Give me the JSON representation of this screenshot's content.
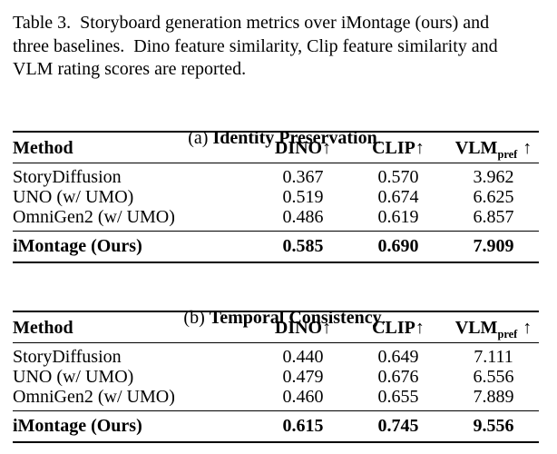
{
  "caption": {
    "lines": [
      "Table 3.  Storyboard generation metrics over iMontage (ours) and",
      "three baselines.  Dino feature similarity, Clip feature similarity and",
      "VLM rating scores are reported."
    ]
  },
  "colors": {
    "text": "#000000",
    "background": "#ffffff",
    "rule": "#000000"
  },
  "tables": [
    {
      "subcaption": {
        "index": "(a)",
        "title": "Identity Preservation",
        "suffix": "."
      },
      "columns": [
        {
          "label": "Method"
        },
        {
          "label": "DINO",
          "arrow": "↑"
        },
        {
          "label": "CLIP",
          "arrow": "↑"
        },
        {
          "label": "VLM",
          "sub": "pref",
          "arrow": "↑"
        }
      ],
      "rows": [
        {
          "method": "StoryDiffusion",
          "dino": "0.367",
          "clip": "0.570",
          "vlm": "3.962"
        },
        {
          "method": "UNO (w/ UMO)",
          "dino": "0.519",
          "clip": "0.674",
          "vlm": "6.625"
        },
        {
          "method": "OmniGen2 (w/ UMO)",
          "dino": "0.486",
          "clip": "0.619",
          "vlm": "6.857"
        },
        {
          "method": "iMontage (Ours)",
          "dino": "0.585",
          "clip": "0.690",
          "vlm": "7.909"
        }
      ]
    },
    {
      "subcaption": {
        "index": "(b)",
        "title": "Temporal Consistency",
        "suffix": "."
      },
      "columns": [
        {
          "label": "Method"
        },
        {
          "label": "DINO",
          "arrow": "↑"
        },
        {
          "label": "CLIP",
          "arrow": "↑"
        },
        {
          "label": "VLM",
          "sub": "pref",
          "arrow": "↑"
        }
      ],
      "rows": [
        {
          "method": "StoryDiffusion",
          "dino": "0.440",
          "clip": "0.649",
          "vlm": "7.111"
        },
        {
          "method": "UNO (w/ UMO)",
          "dino": "0.479",
          "clip": "0.676",
          "vlm": "6.556"
        },
        {
          "method": "OmniGen2 (w/ UMO)",
          "dino": "0.460",
          "clip": "0.655",
          "vlm": "7.889"
        },
        {
          "method": "iMontage (Ours)",
          "dino": "0.615",
          "clip": "0.745",
          "vlm": "9.556"
        }
      ]
    }
  ]
}
